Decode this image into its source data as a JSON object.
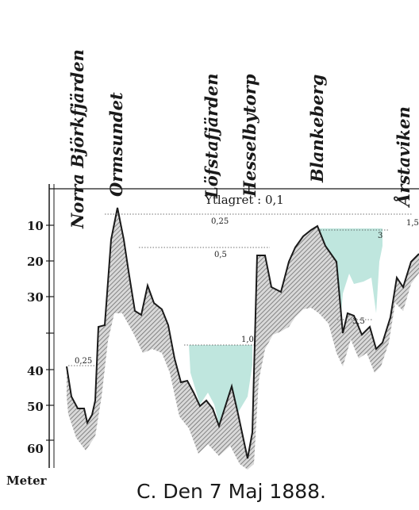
{
  "locations": [
    "Norra Björkfjärden",
    "Ormsundet",
    "Löfstafjärden",
    "Hesselbytorp",
    "Blankeberg",
    "Årstaviken"
  ],
  "surface_label": "Ytlagret : 0,1",
  "depth_axis": {
    "unit": "Meter",
    "ticks": [
      "10",
      "20",
      "30",
      "40",
      "50",
      "60"
    ]
  },
  "contour_labels": [
    "0,25",
    "0,25",
    "0,5",
    "1,0",
    "3",
    "3,5",
    "1,5"
  ],
  "caption": "C. Den 7 Maj 1888.",
  "colors": {
    "water_tint": "#bfe6de",
    "ink": "#1a1a1a",
    "hatch": "#8a8a8a"
  }
}
